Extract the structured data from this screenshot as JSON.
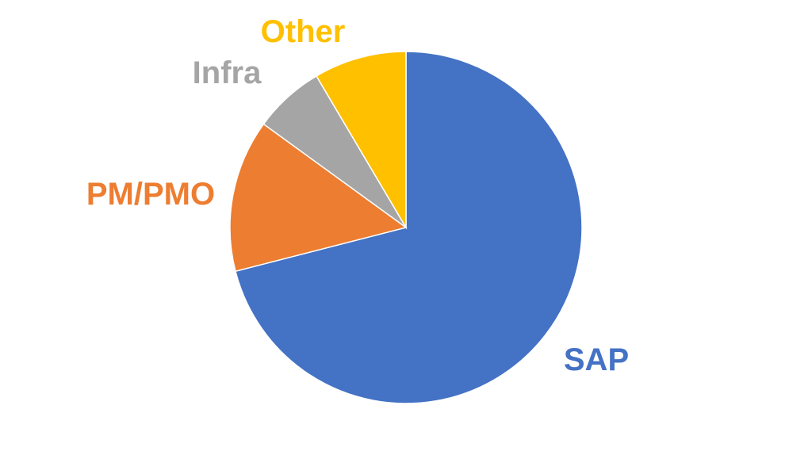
{
  "chart_data": {
    "type": "pie",
    "title": "",
    "categories": [
      "SAP",
      "PM/PMO",
      "Infra",
      "Other"
    ],
    "values": [
      71,
      14,
      6.5,
      8.5
    ],
    "colors": [
      "#4472C4",
      "#ED7D31",
      "#A5A5A5",
      "#FFC000"
    ],
    "start": "12 o'clock",
    "direction": "clockwise",
    "legend": "none"
  }
}
